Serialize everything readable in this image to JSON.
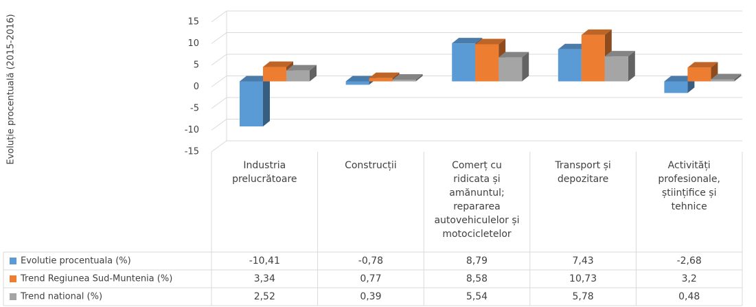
{
  "chart_data": {
    "type": "bar3d",
    "y_label": "Evoluție procentuală (2015-2016)",
    "categories": [
      "Industria\nprelucrătoare",
      "Construcții",
      "Comerț cu\nridicata și\namănuntul;\nrepararea\nautovehiculelor și\nmotocicletelor",
      "Transport și\ndepozitare",
      "Activități\nprofesionale,\nștiințifice și\ntehnice"
    ],
    "series": [
      {
        "name": "Evolutie procentuala (%)",
        "color": "#5b9bd5",
        "values": [
          -10.41,
          -0.78,
          8.79,
          7.43,
          -2.68
        ],
        "value_labels": [
          "-10,41",
          "-0,78",
          "8,79",
          "7,43",
          "-2,68"
        ]
      },
      {
        "name": "Trend Regiunea Sud-Muntenia (%)",
        "color": "#ed7d31",
        "values": [
          3.34,
          0.77,
          8.58,
          10.73,
          3.2
        ],
        "value_labels": [
          "3,34",
          "0,77",
          "8,58",
          "10,73",
          "3,2"
        ]
      },
      {
        "name": "Trend national (%)",
        "color": "#a5a5a5",
        "values": [
          2.52,
          0.39,
          5.54,
          5.78,
          0.48
        ],
        "value_labels": [
          "2,52",
          "0,39",
          "5,54",
          "5,78",
          "0,48"
        ]
      }
    ],
    "ylim": [
      -15,
      15
    ],
    "yticks": [
      -15,
      -10,
      -5,
      0,
      5,
      10,
      15
    ],
    "grid": true,
    "data_table": true
  }
}
